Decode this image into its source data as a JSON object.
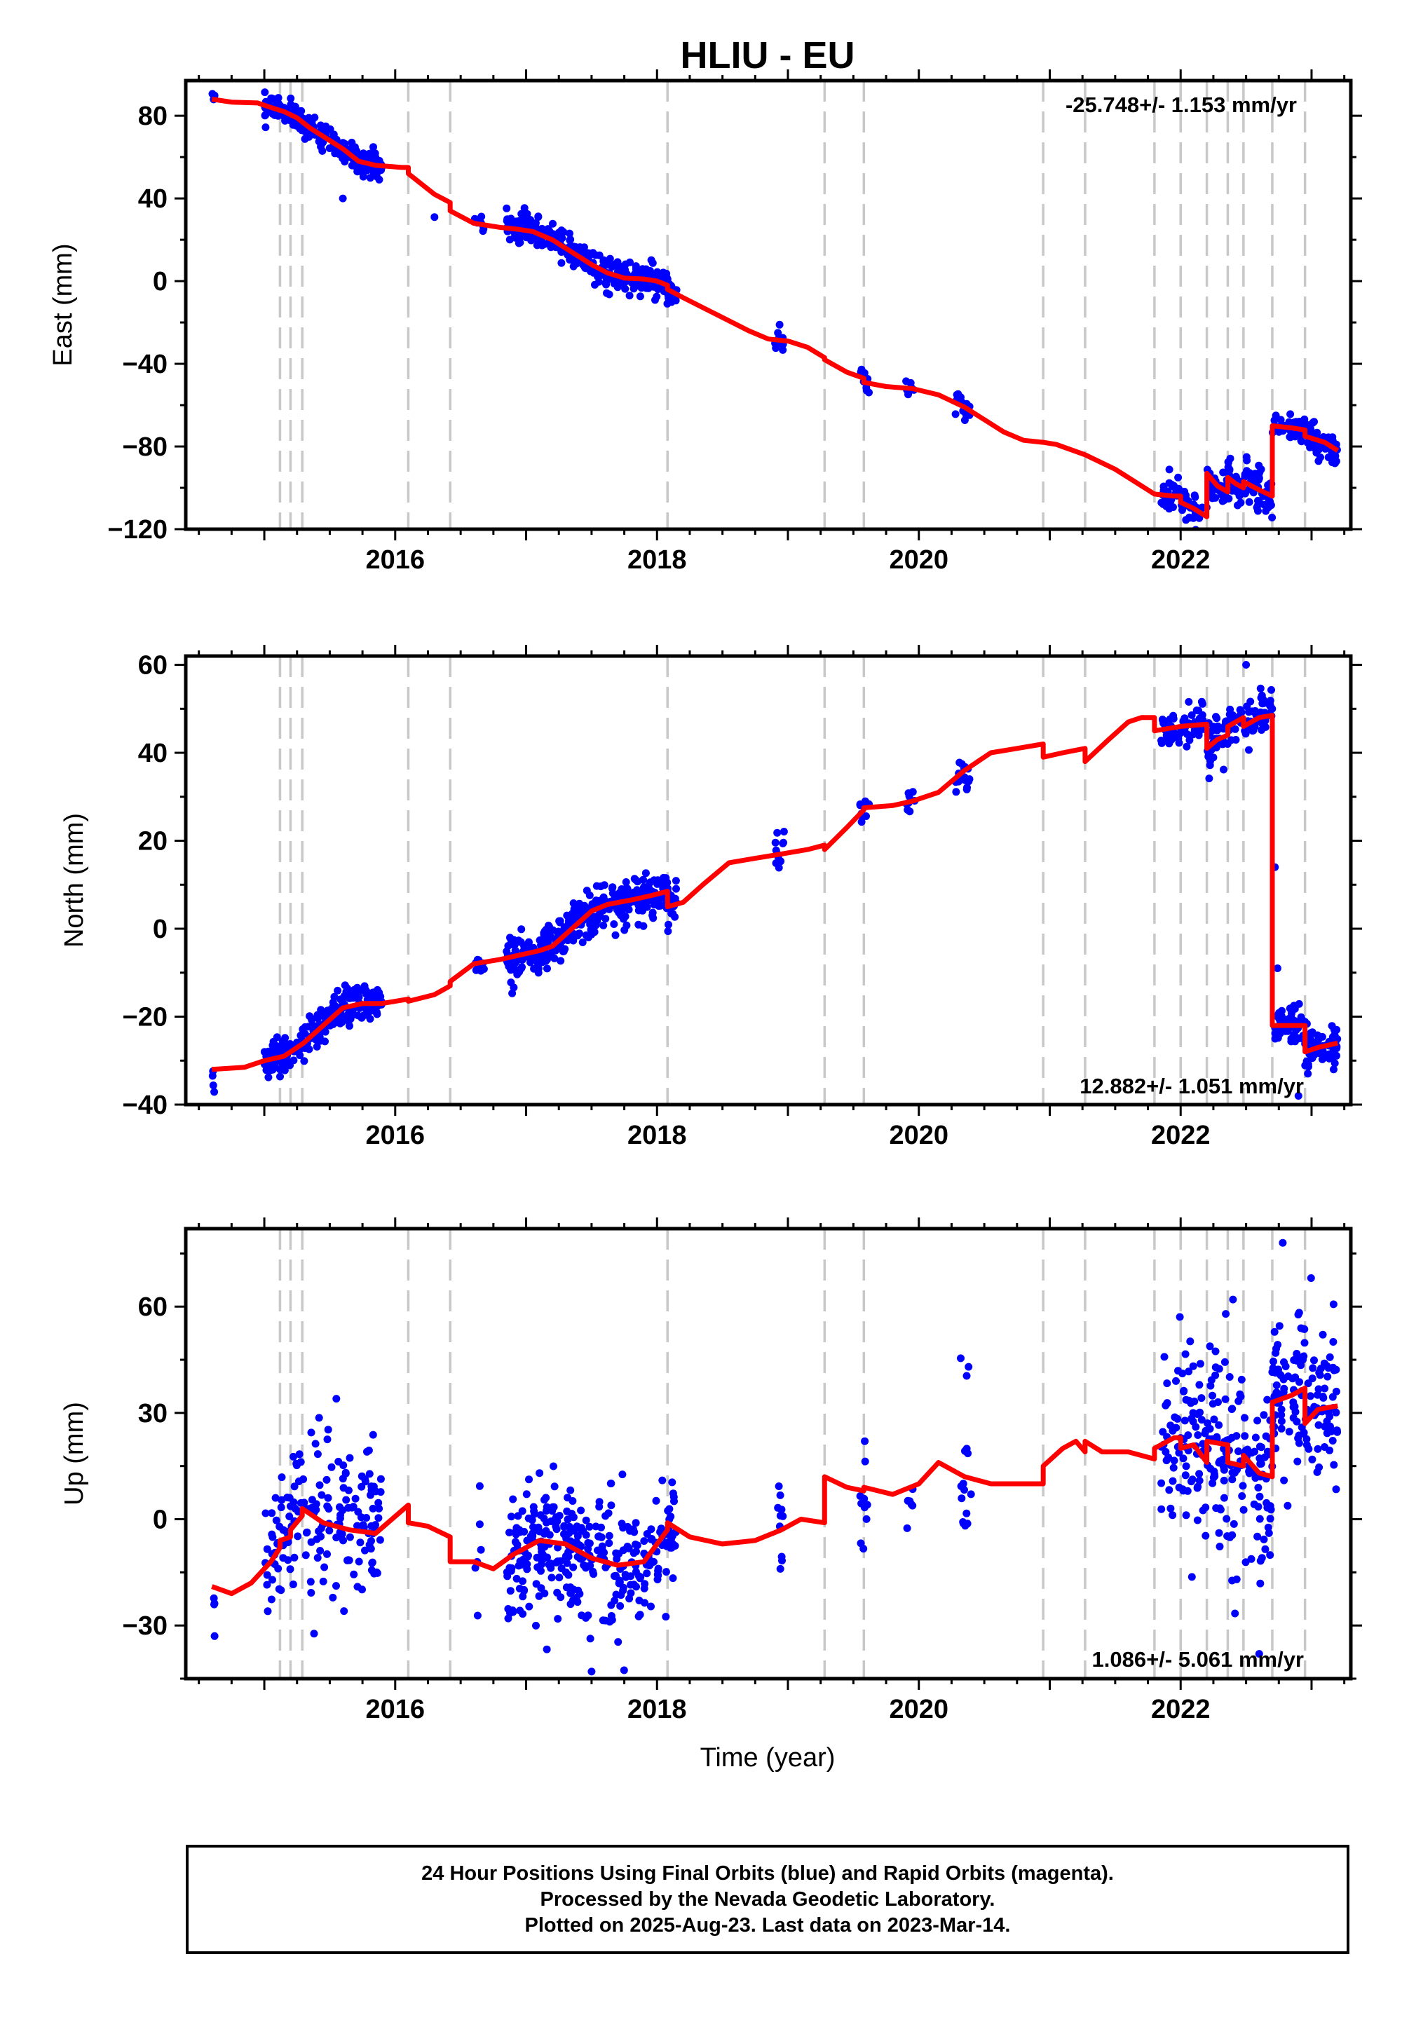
{
  "title": "HLIU - EU",
  "xlabel": "Time (year)",
  "colors": {
    "points": "#0000ff",
    "model": "#ff0000",
    "breaks": "#c8c8c8",
    "axis": "#000000"
  },
  "caption": {
    "line1": "24 Hour Positions Using Final Orbits (blue) and Rapid Orbits (magenta).",
    "line2": "Processed by the Nevada Geodetic Laboratory.",
    "line3": "Plotted on 2025-Aug-23. Last data on 2023-Mar-14."
  },
  "chart_data": [
    {
      "type": "scatter",
      "component": "east",
      "ylabel": "East (mm)",
      "rate": "-25.748+/- 1.153 mm/yr",
      "xlim": [
        2014.4,
        2023.3
      ],
      "ylim": [
        -120,
        97
      ],
      "yticks": [
        -120,
        -80,
        -40,
        0,
        40,
        80
      ],
      "xticks": [
        2016,
        2018,
        2020,
        2022
      ],
      "breaks": [
        2015.12,
        2015.2,
        2015.29,
        2016.1,
        2016.42,
        2018.08,
        2019.28,
        2019.58,
        2020.95,
        2021.27,
        2021.8,
        2022.0,
        2022.2,
        2022.36,
        2022.48,
        2022.7,
        2022.95
      ],
      "model": [
        [
          2014.6,
          88
        ],
        [
          2014.75,
          86.6
        ],
        [
          2014.95,
          86.2
        ],
        [
          2015.05,
          84
        ],
        [
          2015.15,
          82
        ],
        [
          2015.25,
          79
        ],
        [
          2015.35,
          74
        ],
        [
          2015.5,
          68
        ],
        [
          2015.6,
          64
        ],
        [
          2015.72,
          58
        ],
        [
          2015.85,
          56
        ],
        [
          2016.05,
          55
        ],
        [
          2016.1,
          55
        ],
        [
          2016.1,
          52
        ],
        [
          2016.3,
          42
        ],
        [
          2016.42,
          38
        ],
        [
          2016.42,
          34
        ],
        [
          2016.6,
          28
        ],
        [
          2016.8,
          26
        ],
        [
          2016.95,
          25
        ],
        [
          2017.05,
          24
        ],
        [
          2017.2,
          20
        ],
        [
          2017.35,
          14
        ],
        [
          2017.5,
          8
        ],
        [
          2017.62,
          4
        ],
        [
          2017.75,
          1.5
        ],
        [
          2017.9,
          1
        ],
        [
          2018.0,
          0
        ],
        [
          2018.08,
          -2
        ],
        [
          2018.08,
          -4
        ],
        [
          2018.2,
          -8
        ],
        [
          2018.45,
          -16
        ],
        [
          2018.7,
          -24
        ],
        [
          2018.85,
          -28
        ],
        [
          2019.0,
          -29
        ],
        [
          2019.15,
          -32
        ],
        [
          2019.28,
          -37
        ],
        [
          2019.28,
          -38
        ],
        [
          2019.45,
          -44
        ],
        [
          2019.58,
          -47
        ],
        [
          2019.58,
          -49
        ],
        [
          2019.75,
          -51
        ],
        [
          2019.95,
          -52
        ],
        [
          2020.15,
          -55
        ],
        [
          2020.35,
          -61
        ],
        [
          2020.5,
          -67
        ],
        [
          2020.65,
          -73
        ],
        [
          2020.8,
          -77
        ],
        [
          2020.95,
          -78
        ],
        [
          2021.05,
          -79
        ],
        [
          2021.27,
          -84
        ],
        [
          2021.5,
          -91
        ],
        [
          2021.65,
          -97
        ],
        [
          2021.8,
          -103
        ],
        [
          2021.95,
          -104
        ],
        [
          2022.0,
          -104
        ],
        [
          2022.0,
          -107
        ],
        [
          2022.1,
          -110
        ],
        [
          2022.2,
          -114
        ],
        [
          2022.2,
          -93
        ],
        [
          2022.28,
          -99
        ],
        [
          2022.36,
          -102
        ],
        [
          2022.36,
          -95
        ],
        [
          2022.42,
          -98
        ],
        [
          2022.48,
          -100
        ],
        [
          2022.48,
          -97
        ],
        [
          2022.6,
          -101
        ],
        [
          2022.7,
          -104
        ],
        [
          2022.7,
          -70
        ],
        [
          2022.85,
          -71
        ],
        [
          2022.95,
          -72
        ],
        [
          2022.95,
          -75
        ],
        [
          2023.1,
          -78
        ],
        [
          2023.2,
          -82
        ]
      ],
      "clusters": [
        [
          2014.6,
          2014.62,
          91,
          3,
          4
        ],
        [
          2015.0,
          2015.9,
          null,
          3,
          240
        ],
        [
          2016.6,
          2016.68,
          null,
          2,
          12
        ],
        [
          2016.85,
          2018.15,
          null,
          3.5,
          360
        ],
        [
          2018.9,
          2018.97,
          null,
          3,
          12
        ],
        [
          2019.55,
          2019.62,
          null,
          3,
          10
        ],
        [
          2019.9,
          2019.97,
          null,
          2,
          8
        ],
        [
          2020.28,
          2020.4,
          null,
          3,
          20
        ],
        [
          2021.85,
          2022.2,
          null,
          4,
          60
        ],
        [
          2022.2,
          2022.7,
          null,
          5,
          110
        ],
        [
          2022.7,
          2023.2,
          null,
          3.5,
          120
        ]
      ],
      "outliers": [
        [
          2015.6,
          40
        ],
        [
          2016.3,
          31
        ]
      ]
    },
    {
      "type": "scatter",
      "component": "north",
      "ylabel": "North (mm)",
      "rate": "12.882+/- 1.051 mm/yr",
      "xlim": [
        2014.4,
        2023.3
      ],
      "ylim": [
        -40,
        62
      ],
      "yticks": [
        -40,
        -20,
        0,
        20,
        40,
        60
      ],
      "xticks": [
        2016,
        2018,
        2020,
        2022
      ],
      "breaks": [
        2015.12,
        2015.2,
        2015.29,
        2016.1,
        2016.42,
        2018.08,
        2019.28,
        2019.58,
        2020.95,
        2021.27,
        2021.8,
        2022.0,
        2022.2,
        2022.36,
        2022.48,
        2022.7,
        2022.95
      ],
      "model": [
        [
          2014.6,
          -32
        ],
        [
          2014.85,
          -31.5
        ],
        [
          2015.0,
          -30
        ],
        [
          2015.15,
          -29
        ],
        [
          2015.3,
          -26
        ],
        [
          2015.45,
          -22
        ],
        [
          2015.6,
          -18
        ],
        [
          2015.75,
          -17
        ],
        [
          2015.9,
          -17
        ],
        [
          2016.1,
          -16
        ],
        [
          2016.1,
          -16.5
        ],
        [
          2016.3,
          -15
        ],
        [
          2016.42,
          -13
        ],
        [
          2016.42,
          -12
        ],
        [
          2016.6,
          -8
        ],
        [
          2016.8,
          -7
        ],
        [
          2016.95,
          -6
        ],
        [
          2017.1,
          -5
        ],
        [
          2017.2,
          -4
        ],
        [
          2017.35,
          0
        ],
        [
          2017.5,
          4
        ],
        [
          2017.62,
          5.5
        ],
        [
          2017.8,
          6.5
        ],
        [
          2017.95,
          7.5
        ],
        [
          2018.08,
          8.5
        ],
        [
          2018.08,
          5
        ],
        [
          2018.2,
          6
        ],
        [
          2018.35,
          10
        ],
        [
          2018.55,
          15
        ],
        [
          2018.75,
          16
        ],
        [
          2018.95,
          17
        ],
        [
          2019.15,
          18
        ],
        [
          2019.28,
          19
        ],
        [
          2019.28,
          18
        ],
        [
          2019.45,
          23
        ],
        [
          2019.58,
          27
        ],
        [
          2019.58,
          27.5
        ],
        [
          2019.8,
          28
        ],
        [
          2019.95,
          29
        ],
        [
          2020.15,
          31
        ],
        [
          2020.35,
          36
        ],
        [
          2020.55,
          40
        ],
        [
          2020.75,
          41
        ],
        [
          2020.95,
          42
        ],
        [
          2020.95,
          39
        ],
        [
          2021.1,
          40
        ],
        [
          2021.27,
          41
        ],
        [
          2021.27,
          38
        ],
        [
          2021.45,
          43
        ],
        [
          2021.6,
          47
        ],
        [
          2021.7,
          48
        ],
        [
          2021.8,
          48
        ],
        [
          2021.8,
          45
        ],
        [
          2022.0,
          46
        ],
        [
          2022.2,
          46.5
        ],
        [
          2022.2,
          41
        ],
        [
          2022.28,
          43
        ],
        [
          2022.36,
          44
        ],
        [
          2022.36,
          46
        ],
        [
          2022.48,
          48
        ],
        [
          2022.48,
          46
        ],
        [
          2022.6,
          48
        ],
        [
          2022.7,
          48.5
        ],
        [
          2022.7,
          -22
        ],
        [
          2022.85,
          -22
        ],
        [
          2022.95,
          -22
        ],
        [
          2022.95,
          -28
        ],
        [
          2023.05,
          -27
        ],
        [
          2023.2,
          -26
        ]
      ],
      "clusters": [
        [
          2014.6,
          2014.62,
          -34.5,
          1,
          4
        ],
        [
          2015.0,
          2015.9,
          null,
          2.2,
          240
        ],
        [
          2016.6,
          2016.68,
          null,
          1.5,
          12
        ],
        [
          2016.85,
          2018.15,
          null,
          2.5,
          360
        ],
        [
          2018.9,
          2018.97,
          null,
          2.5,
          12
        ],
        [
          2019.55,
          2019.62,
          null,
          2,
          10
        ],
        [
          2019.9,
          2019.97,
          null,
          1.5,
          8
        ],
        [
          2020.28,
          2020.4,
          null,
          2,
          20
        ],
        [
          2021.85,
          2022.2,
          null,
          2,
          60
        ],
        [
          2022.2,
          2022.7,
          null,
          3,
          110
        ],
        [
          2022.72,
          2023.2,
          null,
          2.5,
          120
        ]
      ],
      "outliers": [
        [
          2022.72,
          14
        ],
        [
          2022.74,
          -9
        ],
        [
          2022.5,
          60
        ],
        [
          2022.9,
          -38
        ]
      ]
    },
    {
      "type": "scatter",
      "component": "up",
      "ylabel": "Up (mm)",
      "rate": "1.086+/- 5.061 mm/yr",
      "xlim": [
        2014.4,
        2023.3
      ],
      "ylim": [
        -45,
        82
      ],
      "yticks": [
        -30,
        0,
        30,
        60
      ],
      "xticks": [
        2016,
        2018,
        2020,
        2022
      ],
      "breaks": [
        2015.12,
        2015.2,
        2015.29,
        2016.1,
        2016.42,
        2018.08,
        2019.28,
        2019.58,
        2020.95,
        2021.27,
        2021.8,
        2022.0,
        2022.2,
        2022.36,
        2022.48,
        2022.7,
        2022.95
      ],
      "model": [
        [
          2014.6,
          -19
        ],
        [
          2014.75,
          -21
        ],
        [
          2014.9,
          -18
        ],
        [
          2015.05,
          -12
        ],
        [
          2015.12,
          -8
        ],
        [
          2015.12,
          -6
        ],
        [
          2015.2,
          -5
        ],
        [
          2015.2,
          -3
        ],
        [
          2015.29,
          1
        ],
        [
          2015.29,
          3
        ],
        [
          2015.45,
          -1
        ],
        [
          2015.65,
          -3
        ],
        [
          2015.85,
          -4
        ],
        [
          2016.1,
          4
        ],
        [
          2016.1,
          -1
        ],
        [
          2016.25,
          -2
        ],
        [
          2016.42,
          -5
        ],
        [
          2016.42,
          -12
        ],
        [
          2016.6,
          -12
        ],
        [
          2016.75,
          -14
        ],
        [
          2016.9,
          -10
        ],
        [
          2017.1,
          -6
        ],
        [
          2017.3,
          -7
        ],
        [
          2017.5,
          -11
        ],
        [
          2017.7,
          -13
        ],
        [
          2017.9,
          -12
        ],
        [
          2018.08,
          -3
        ],
        [
          2018.08,
          -1
        ],
        [
          2018.25,
          -5
        ],
        [
          2018.5,
          -7
        ],
        [
          2018.75,
          -6
        ],
        [
          2018.95,
          -3
        ],
        [
          2019.1,
          0
        ],
        [
          2019.28,
          -1
        ],
        [
          2019.28,
          12
        ],
        [
          2019.45,
          9
        ],
        [
          2019.58,
          8
        ],
        [
          2019.58,
          9
        ],
        [
          2019.8,
          7
        ],
        [
          2020.0,
          10
        ],
        [
          2020.15,
          16
        ],
        [
          2020.35,
          12
        ],
        [
          2020.55,
          10
        ],
        [
          2020.75,
          10
        ],
        [
          2020.95,
          10
        ],
        [
          2020.95,
          15
        ],
        [
          2021.1,
          20
        ],
        [
          2021.2,
          22
        ],
        [
          2021.27,
          19
        ],
        [
          2021.27,
          22
        ],
        [
          2021.4,
          19
        ],
        [
          2021.6,
          19
        ],
        [
          2021.8,
          17
        ],
        [
          2021.8,
          20
        ],
        [
          2021.95,
          23
        ],
        [
          2022.0,
          23
        ],
        [
          2022.0,
          20
        ],
        [
          2022.1,
          21
        ],
        [
          2022.2,
          16
        ],
        [
          2022.2,
          22
        ],
        [
          2022.36,
          21
        ],
        [
          2022.36,
          16
        ],
        [
          2022.48,
          15
        ],
        [
          2022.48,
          18
        ],
        [
          2022.6,
          13
        ],
        [
          2022.7,
          12
        ],
        [
          2022.7,
          33
        ],
        [
          2022.85,
          35
        ],
        [
          2022.95,
          37
        ],
        [
          2022.95,
          27
        ],
        [
          2023.05,
          31
        ],
        [
          2023.2,
          32
        ]
      ],
      "clusters": [
        [
          2014.6,
          2014.65,
          -25,
          6,
          3
        ],
        [
          2015.0,
          2015.9,
          null,
          11,
          180
        ],
        [
          2016.6,
          2016.68,
          null,
          7,
          6
        ],
        [
          2016.85,
          2018.15,
          null,
          9,
          340
        ],
        [
          2018.92,
          2018.97,
          null,
          14,
          10
        ],
        [
          2019.55,
          2019.62,
          null,
          10,
          10
        ],
        [
          2019.9,
          2019.97,
          null,
          6,
          6
        ],
        [
          2020.3,
          2020.4,
          null,
          12,
          16
        ],
        [
          2021.85,
          2022.7,
          null,
          14,
          220
        ],
        [
          2022.7,
          2023.2,
          null,
          11,
          140
        ]
      ],
      "outliers": [
        [
          2014.62,
          -33
        ],
        [
          2015.55,
          34
        ],
        [
          2017.5,
          -43
        ],
        [
          2020.38,
          43
        ],
        [
          2022.78,
          78
        ],
        [
          2022.4,
          62
        ],
        [
          2022.6,
          -38
        ]
      ]
    }
  ]
}
